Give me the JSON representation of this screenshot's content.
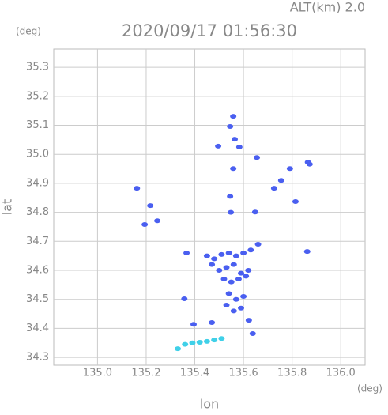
{
  "chart_data": {
    "type": "scatter",
    "title": "2020/09/17 01:56:30",
    "altitude_label": "ALT(km) 2.0",
    "y_unit": "(deg)",
    "x_unit": "(deg)",
    "x_label": "lon",
    "y_label": "lat",
    "xlim": [
      134.82,
      136.1
    ],
    "ylim": [
      34.273,
      35.363
    ],
    "xticks": [
      {
        "value": 135,
        "label": "135.0"
      },
      135.2,
      135.4,
      135.6,
      135.8,
      {
        "value": 136,
        "label": "136.0"
      }
    ],
    "yticks": [
      {
        "value": 34.3,
        "label": "34.3"
      },
      34.4,
      34.5,
      34.6,
      34.7,
      34.8,
      34.9,
      {
        "value": 35,
        "label": "35.0"
      },
      35.1,
      35.2,
      35.3
    ],
    "grid": true,
    "series": [
      {
        "color": "#4a5ff0",
        "x": [
          135.558,
          135.545,
          135.564,
          135.496,
          135.583,
          135.655,
          135.558,
          135.865,
          135.872,
          135.791,
          135.726,
          135.755,
          135.162,
          135.217,
          135.246,
          135.194,
          135.545,
          135.548,
          135.648,
          135.814,
          135.862,
          135.366,
          135.45,
          135.48,
          135.51,
          135.54,
          135.57,
          135.6,
          135.63,
          135.66,
          135.47,
          135.5,
          135.53,
          135.56,
          135.59,
          135.62,
          135.52,
          135.55,
          135.58,
          135.61,
          135.54,
          135.57,
          135.6,
          135.53,
          135.56,
          135.59,
          135.357,
          135.395,
          135.47,
          135.622,
          135.638
        ],
        "y": [
          35.131,
          35.096,
          35.052,
          35.028,
          35.025,
          34.989,
          34.951,
          34.973,
          34.966,
          34.951,
          34.883,
          34.91,
          34.883,
          34.823,
          34.771,
          34.758,
          34.855,
          34.8,
          34.801,
          34.837,
          34.665,
          34.66,
          34.65,
          34.64,
          34.655,
          34.66,
          34.65,
          34.66,
          34.67,
          34.69,
          34.62,
          34.6,
          34.61,
          34.62,
          34.59,
          34.6,
          34.57,
          34.56,
          34.57,
          34.58,
          34.52,
          34.5,
          34.51,
          34.48,
          34.46,
          34.47,
          34.502,
          34.414,
          34.42,
          34.428,
          34.382
        ]
      },
      {
        "color": "#40d0e8",
        "x": [
          135.33,
          135.36,
          135.39,
          135.42,
          135.45,
          135.48,
          135.51
        ],
        "y": [
          34.33,
          34.345,
          34.35,
          34.352,
          34.355,
          34.36,
          34.365
        ]
      }
    ]
  }
}
